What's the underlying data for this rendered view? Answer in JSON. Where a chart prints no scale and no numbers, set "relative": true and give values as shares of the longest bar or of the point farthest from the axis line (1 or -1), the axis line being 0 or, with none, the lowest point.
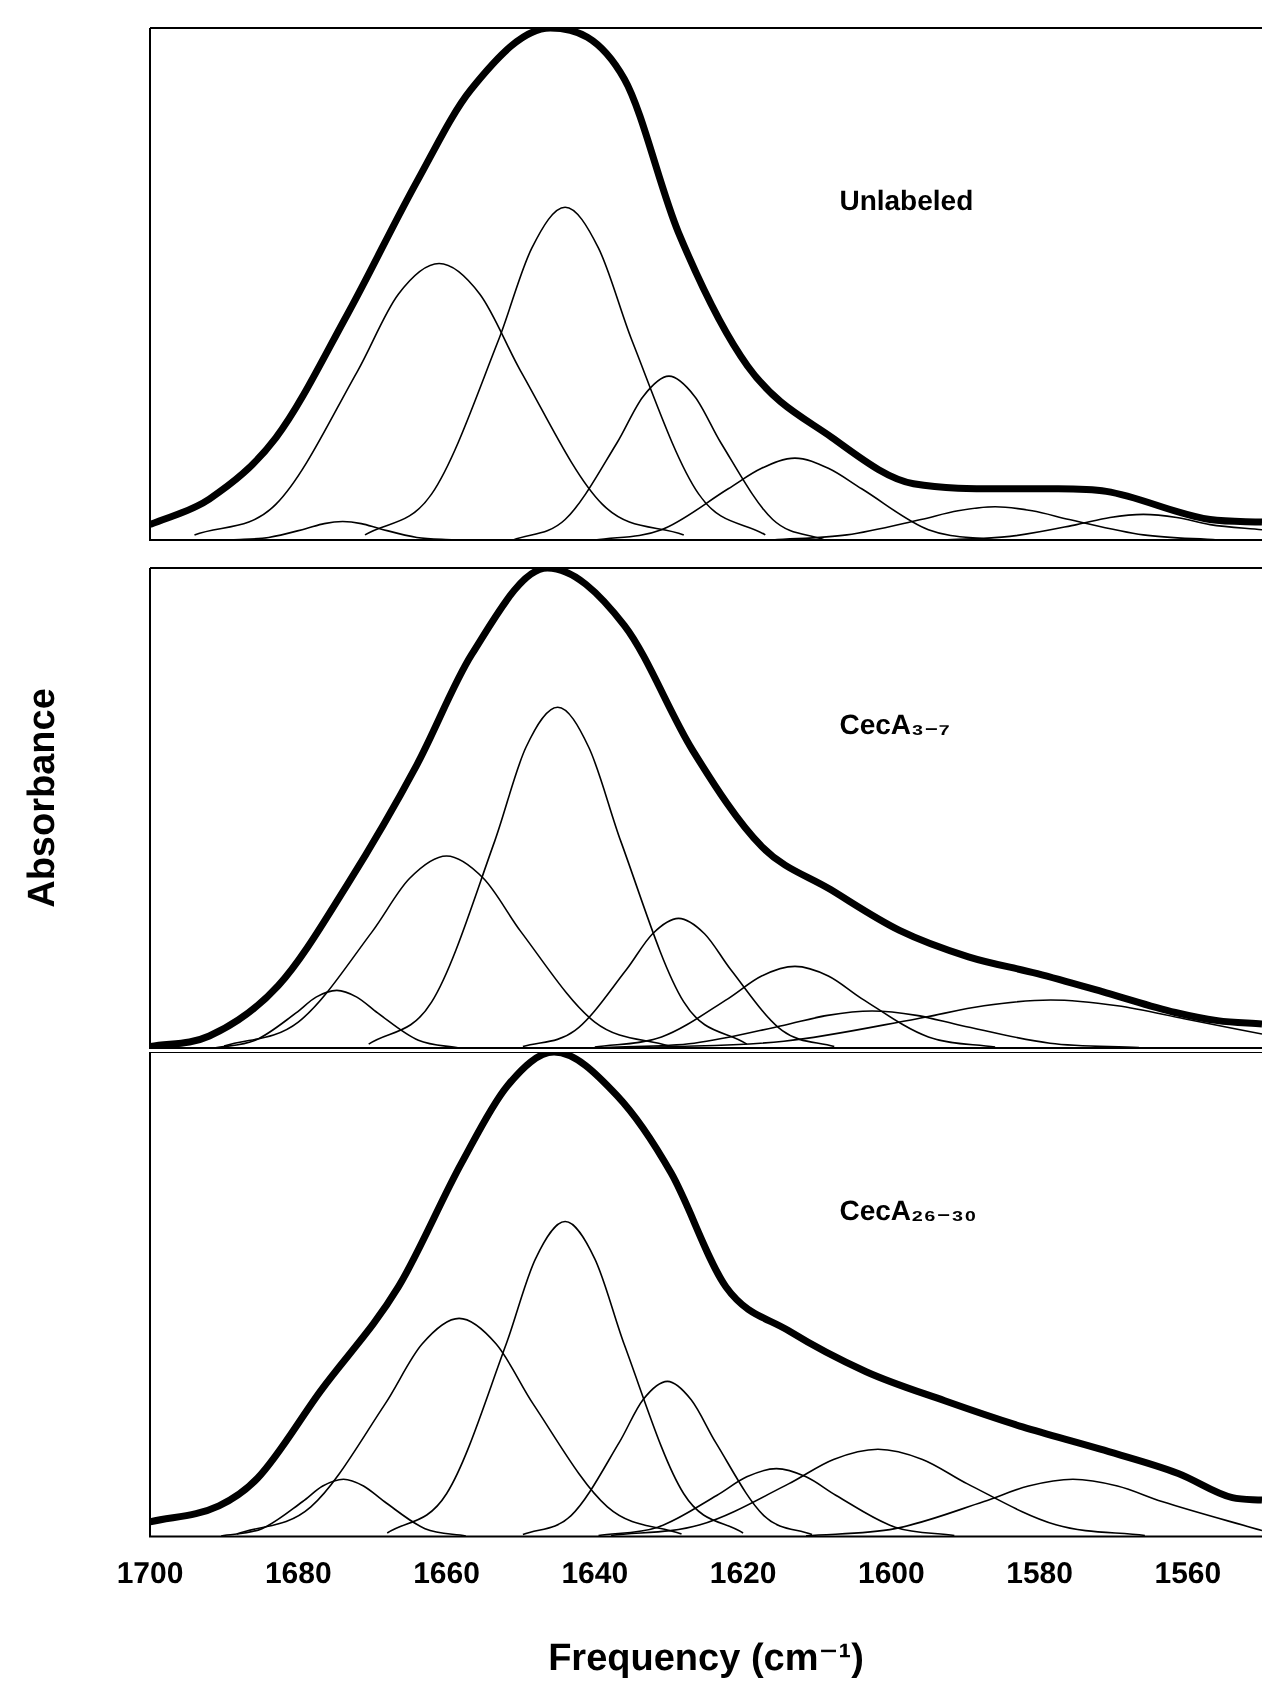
{
  "chart_data": [
    {
      "type": "line",
      "relative": true,
      "xlim": [
        1700,
        1550
      ],
      "tick_labels": false,
      "legend": false,
      "grid": false,
      "marker": "none",
      "line_style": "solid",
      "annotations": [
        "Unlabeled"
      ],
      "series": [
        {
          "color": "#000000",
          "x": [
            1700,
            1692,
            1683,
            1673.4,
            1664,
            1656.7,
            1646,
            1636,
            1628.7,
            1619.4,
            1608,
            1597,
            1585,
            1577.5,
            1571,
            1557,
            1550
          ],
          "values": [
            0.03,
            0.08,
            0.2,
            0.44,
            0.7,
            0.88,
            1.0,
            0.9,
            0.6,
            0.34,
            0.2,
            0.11,
            0.1,
            0.1,
            0.095,
            0.04,
            0.035
          ]
        },
        {
          "color": "#000000",
          "x": [
            1689,
            1684,
            1679,
            1676.5,
            1674,
            1671.5,
            1669,
            1664,
            1659
          ],
          "values": [
            0,
            0.005,
            0.022,
            0.032,
            0.036,
            0.032,
            0.022,
            0.005,
            0
          ]
        },
        {
          "color": "#000000",
          "x": [
            1694,
            1683,
            1672,
            1666.5,
            1661,
            1655.5,
            1650,
            1639,
            1628
          ],
          "values": [
            0.01,
            0.07,
            0.33,
            0.48,
            0.54,
            0.48,
            0.33,
            0.07,
            0.01
          ]
        },
        {
          "color": "#000000",
          "x": [
            1671,
            1662,
            1653,
            1648.5,
            1644,
            1639.5,
            1635,
            1626,
            1617
          ],
          "values": [
            0.01,
            0.09,
            0.39,
            0.57,
            0.65,
            0.57,
            0.39,
            0.09,
            0.01
          ]
        },
        {
          "color": "#000000",
          "x": [
            1651,
            1644,
            1637,
            1633.5,
            1630,
            1626.5,
            1623,
            1616,
            1609
          ],
          "values": [
            0,
            0.04,
            0.19,
            0.28,
            0.32,
            0.28,
            0.19,
            0.04,
            0
          ]
        },
        {
          "color": "#000000",
          "x": [
            1640,
            1631,
            1622,
            1617.5,
            1613,
            1608.5,
            1604,
            1595,
            1586
          ],
          "values": [
            0,
            0.02,
            0.1,
            0.14,
            0.16,
            0.14,
            0.1,
            0.02,
            0
          ]
        },
        {
          "color": "#000000",
          "x": [
            1616,
            1606,
            1596,
            1591,
            1586,
            1581,
            1576,
            1566,
            1556
          ],
          "values": [
            0,
            0.01,
            0.04,
            0.057,
            0.065,
            0.057,
            0.04,
            0.01,
            0
          ]
        },
        {
          "color": "#000000",
          "x": [
            1593,
            1584,
            1575,
            1570.5,
            1566,
            1561.5,
            1557,
            1550
          ],
          "values": [
            0,
            0.007,
            0.03,
            0.044,
            0.05,
            0.044,
            0.03,
            0.02
          ]
        }
      ]
    },
    {
      "type": "line",
      "relative": true,
      "xlim": [
        1700,
        1550
      ],
      "tick_labels": false,
      "legend": false,
      "grid": false,
      "marker": "none",
      "line_style": "solid",
      "ylabel": "Absorbance",
      "annotations": [
        "CecA₃₋₇"
      ],
      "series": [
        {
          "color": "#000000",
          "x": [
            1700,
            1692,
            1682.7,
            1673.4,
            1664,
            1656.6,
            1646.4,
            1636,
            1626.8,
            1617.5,
            1608.2,
            1598.9,
            1589.6,
            1580.3,
            1571,
            1561.7,
            1556,
            1550
          ],
          "values": [
            0.003,
            0.025,
            0.13,
            0.34,
            0.59,
            0.82,
            1.0,
            0.88,
            0.62,
            0.42,
            0.33,
            0.245,
            0.19,
            0.155,
            0.115,
            0.074,
            0.057,
            0.05
          ]
        },
        {
          "color": "#000000",
          "x": [
            1691.3,
            1685.8,
            1680.3,
            1677.6,
            1674.8,
            1672.1,
            1669.3,
            1663.8,
            1658.3
          ],
          "values": [
            0,
            0.016,
            0.073,
            0.106,
            0.12,
            0.106,
            0.073,
            0.016,
            0
          ]
        },
        {
          "color": "#000000",
          "x": [
            1690,
            1680,
            1670,
            1665,
            1660,
            1655,
            1650,
            1640,
            1630
          ],
          "values": [
            0.004,
            0.054,
            0.243,
            0.353,
            0.4,
            0.353,
            0.243,
            0.054,
            0.004
          ]
        },
        {
          "color": "#000000",
          "x": [
            1670.5,
            1662,
            1653.5,
            1649.3,
            1645,
            1640.8,
            1636.5,
            1628,
            1619.5
          ],
          "values": [
            0.008,
            0.096,
            0.431,
            0.626,
            0.71,
            0.626,
            0.431,
            0.096,
            0.008
          ]
        },
        {
          "color": "#000000",
          "x": [
            1649.7,
            1642.7,
            1635.7,
            1632.2,
            1628.7,
            1625.2,
            1621.7,
            1614.7,
            1607.7
          ],
          "values": [
            0.003,
            0.036,
            0.164,
            0.238,
            0.27,
            0.238,
            0.164,
            0.036,
            0.003
          ]
        },
        {
          "color": "#000000",
          "x": [
            1640,
            1631,
            1622,
            1617.5,
            1613,
            1608.5,
            1604,
            1595,
            1586
          ],
          "values": [
            0.002,
            0.023,
            0.103,
            0.15,
            0.17,
            0.15,
            0.103,
            0.023,
            0.002
          ]
        },
        {
          "color": "#000000",
          "x": [
            1638.6,
            1626.6,
            1614.6,
            1608.6,
            1602.6,
            1596.6,
            1590.6,
            1578.6,
            1566.6
          ],
          "values": [
            0.001,
            0.01,
            0.047,
            0.068,
            0.077,
            0.068,
            0.047,
            0.01,
            0.001
          ]
        },
        {
          "color": "#000000",
          "x": [
            1632.5,
            1614.5,
            1596.5,
            1587.5,
            1578.5,
            1569.5,
            1560.5,
            1550
          ],
          "values": [
            0.001,
            0.014,
            0.061,
            0.088,
            0.1,
            0.088,
            0.061,
            0.029
          ]
        }
      ]
    },
    {
      "type": "line",
      "relative": true,
      "xlim": [
        1700,
        1550
      ],
      "xticks": [
        1700,
        1680,
        1660,
        1640,
        1620,
        1600,
        1580,
        1560
      ],
      "tick_labels": "x",
      "legend": false,
      "grid": false,
      "marker": "none",
      "line_style": "solid",
      "xlabel": "Frequency (cm⁻¹)",
      "annotations": [
        "CecA₂₆₋₃₀"
      ],
      "series": [
        {
          "color": "#000000",
          "x": [
            1700,
            1690.7,
            1685.5,
            1677,
            1666.5,
            1658,
            1651.8,
            1645.5,
            1637,
            1629.7,
            1622.3,
            1613.9,
            1603.4,
            1592.8,
            1582.3,
            1571.8,
            1561.3,
            1554,
            1550
          ],
          "values": [
            0.03,
            0.063,
            0.12,
            0.3,
            0.515,
            0.77,
            0.93,
            1.0,
            0.91,
            0.75,
            0.515,
            0.425,
            0.34,
            0.28,
            0.226,
            0.18,
            0.13,
            0.08,
            0.075
          ]
        },
        {
          "color": "#000000",
          "x": [
            1690.4,
            1684.9,
            1679.4,
            1676.7,
            1673.9,
            1671.2,
            1668.4,
            1662.9,
            1657.4
          ],
          "values": [
            0.001,
            0.016,
            0.072,
            0.104,
            0.118,
            0.104,
            0.072,
            0.016,
            0.001
          ]
        },
        {
          "color": "#000000",
          "x": [
            1688.3,
            1678.3,
            1668.3,
            1663.3,
            1658.3,
            1653.3,
            1648.3,
            1638.3,
            1628.3
          ],
          "values": [
            0.005,
            0.061,
            0.273,
            0.397,
            0.45,
            0.397,
            0.273,
            0.061,
            0.005
          ]
        },
        {
          "color": "#000000",
          "x": [
            1668,
            1660,
            1652,
            1648,
            1644,
            1640,
            1636,
            1628,
            1620
          ],
          "values": [
            0.007,
            0.088,
            0.395,
            0.573,
            0.65,
            0.573,
            0.395,
            0.088,
            0.007
          ]
        },
        {
          "color": "#000000",
          "x": [
            1649.7,
            1643.2,
            1636.7,
            1633.5,
            1630.2,
            1627,
            1623.7,
            1617.2,
            1610.7
          ],
          "values": [
            0.004,
            0.043,
            0.194,
            0.282,
            0.32,
            0.282,
            0.194,
            0.043,
            0.004
          ]
        },
        {
          "color": "#000000",
          "x": [
            1639.5,
            1631.5,
            1623.5,
            1619.5,
            1615.5,
            1611.5,
            1607.5,
            1599.5,
            1591.5
          ],
          "values": [
            0.002,
            0.019,
            0.085,
            0.123,
            0.14,
            0.123,
            0.085,
            0.019,
            0.002
          ]
        },
        {
          "color": "#000000",
          "x": [
            1637.8,
            1625.8,
            1613.8,
            1607.8,
            1601.8,
            1595.8,
            1589.8,
            1577.8,
            1565.8
          ],
          "values": [
            0.002,
            0.024,
            0.109,
            0.159,
            0.18,
            0.159,
            0.109,
            0.024,
            0.002
          ]
        },
        {
          "color": "#000000",
          "x": [
            1611.5,
            1599.5,
            1587.5,
            1581.5,
            1575.5,
            1569.5,
            1563.5,
            1550
          ],
          "values": [
            0.001,
            0.016,
            0.072,
            0.104,
            0.118,
            0.104,
            0.072,
            0.012
          ]
        }
      ]
    }
  ]
}
